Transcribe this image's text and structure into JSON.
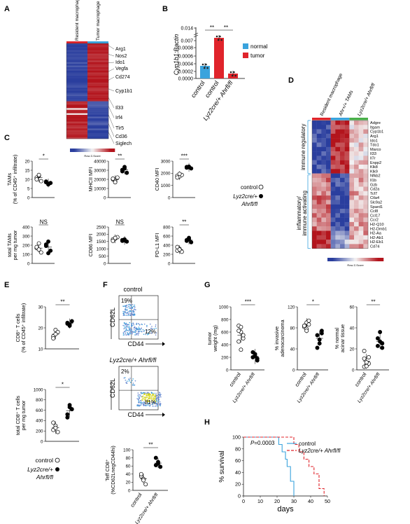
{
  "panels": {
    "A": {
      "label": "A",
      "columns": [
        "Resident macrophage",
        "Tumor macrophage"
      ],
      "genes": [
        "Arg1",
        "Nos2",
        "Ido1",
        "Vegfa",
        "Cd274",
        "Cyp1b1",
        "Il33",
        "Irf4",
        "Tlr5",
        "Cd36",
        "Siglech"
      ],
      "scale_label": "Row Z-Score",
      "colors": {
        "low": "#2c3fa0",
        "mid": "#ffffff",
        "high": "#b0131d"
      }
    },
    "B": {
      "label": "B",
      "ylabel": "Cyp1b1:Bactin",
      "yticks": [
        "0.014",
        "0.007",
        "0.0008",
        "0.0006",
        "0.0004",
        "0.0002",
        "0.0000"
      ],
      "xlabels": [
        "control",
        "control",
        "Lyz2cre/+ Ahrfl/fl"
      ],
      "legend": [
        {
          "name": "normal",
          "color": "#3aa3dd"
        },
        {
          "name": "tumor",
          "color": "#e0242b"
        }
      ],
      "sig": [
        "**",
        "**"
      ],
      "chart_data": {
        "type": "bar",
        "categories": [
          "control (normal)",
          "control (tumor)",
          "Lyz2cre/+ Ahrfl/fl (tumor)"
        ],
        "values": [
          0.00035,
          0.0095,
          0.00015
        ],
        "colors": [
          "#3aa3dd",
          "#e0242b",
          "#e0242b"
        ]
      }
    },
    "C": {
      "label": "C",
      "legend_control": "control",
      "legend_ko": "Lyz2cre/+",
      "legend_ko2": "Ahrfl/fl",
      "plots": [
        {
          "ylabel": "TAMs",
          "ylabel2": "(% of CD45⁺ infiltrate)",
          "yticks": [
            "20",
            "15",
            "10",
            "5",
            "0"
          ],
          "sig": "*"
        },
        {
          "ylabel": "MHCII MFI",
          "yticks": [
            "40000",
            "30000",
            "20000",
            "10000",
            "0"
          ],
          "sig": "**"
        },
        {
          "ylabel": "CD40 MFI",
          "yticks": [
            "3000",
            "2000",
            "1000",
            "0"
          ],
          "sig": "***"
        },
        {
          "ylabel": "total TAMs",
          "ylabel2": "per mg tumor",
          "yticks": [
            "400",
            "300",
            "200",
            "100",
            "0"
          ],
          "sig": "NS"
        },
        {
          "ylabel": "CD86 MFI",
          "yticks": [
            "2500",
            "2000",
            "1500",
            "1000",
            "500",
            "0"
          ],
          "sig": "NS"
        },
        {
          "ylabel": "PD-L1 MFI",
          "yticks": [
            "800",
            "600",
            "400",
            "200",
            "0"
          ],
          "sig": "**"
        }
      ]
    },
    "D": {
      "label": "D",
      "columns": [
        "Resident macrophage",
        "Ahr+/+ TAMs",
        "Lyz2cre/+ Ahrfl/fl"
      ],
      "group_top": "immune regulatory",
      "group_bottom": "inflammatory/ immune activating",
      "genes": [
        "Adgre",
        "Itgam",
        "Cyp1b1",
        "Arg1",
        "Ido1",
        "Tdo1",
        "Marco",
        "Il33",
        "Il7r",
        "Enpp2",
        "Klk8",
        "Klk9",
        "Nfkb2",
        "Il1b",
        "Gzb",
        "Cd2a",
        "Tcf7",
        "Ctla4",
        "Slc9a2",
        "Spard1",
        "Ccl8",
        "Ccl17",
        "Ccr2",
        "H2-Q10",
        "H2-Dmb1",
        "H2-Aa",
        "H2-Ab1",
        "H2-Eb1",
        "Cd74"
      ],
      "scale_label": "Row Z-Score"
    },
    "E": {
      "label": "E",
      "top_ylabel": "CD8⁺ T cells",
      "top_ylabel2": "(% of CD45⁺ infiltrate)",
      "top_yticks": [
        "30",
        "20",
        "10"
      ],
      "top_sig": "**",
      "bot_ylabel": "total CD8⁺ T cells",
      "bot_ylabel2": "per mg tumor",
      "bot_yticks": [
        "1000",
        "800",
        "600",
        "400",
        "200",
        "0"
      ],
      "bot_sig": "*",
      "legend_control": "control",
      "legend_ko": "Lyz2cre/+",
      "legend_ko2": "Ahrfl/fl"
    },
    "F": {
      "label": "F",
      "ctrl_title": "control",
      "ko_title": "Lyz2cre/+ Ahrfl/fl",
      "ctrl_q1": "19%",
      "ctrl_q2": "12%",
      "ko_q1": "2%",
      "ko_q2": "81%",
      "xaxis": "CD44",
      "yaxis": "CD62L",
      "bar_ylabel": "Teff CD8⁺",
      "bar_ylabel2": "(%CD62LnegCD44hi)",
      "bar_yticks": [
        "100",
        "80",
        "60",
        "40",
        "20",
        "0"
      ],
      "bar_sig": "**",
      "xlabels": [
        "control",
        "Lyz2cre/+ Ahrfl/fl"
      ]
    },
    "G": {
      "label": "G",
      "plots": [
        {
          "ylabel": "tumor",
          "ylabel2": "weight (mg)",
          "yticks": [
            "1000",
            "800",
            "600",
            "400",
            "200",
            "0"
          ],
          "sig": "***"
        },
        {
          "ylabel": "% invasive",
          "ylabel2": "adenocarcinoma",
          "yticks": [
            "120",
            "80",
            "40",
            "0"
          ],
          "sig": "*"
        },
        {
          "ylabel": "% normal",
          "ylabel2": "acinar tissue",
          "yticks": [
            "60",
            "40",
            "20",
            "0"
          ],
          "sig": "**"
        }
      ],
      "xlabels": [
        "control",
        "Lyz2cre/+ Ahrfl/fl"
      ]
    },
    "H": {
      "label": "H",
      "pvalue": "P=0.0003",
      "legend_control": "control",
      "legend_ko": "Lyz2cre/+ Ahrfl/fl",
      "ylabel": "% survival",
      "xlabel": "days",
      "yticks": [
        "100",
        "80",
        "60",
        "40",
        "20",
        "0"
      ],
      "xticks": [
        "0",
        "10",
        "20",
        "30",
        "40",
        "50"
      ],
      "chart_data": {
        "type": "line",
        "series": [
          {
            "name": "control",
            "color": "#3aa3dd",
            "x": [
              0,
              20,
              21,
              23,
              25,
              26,
              28,
              30,
              30
            ],
            "y": [
              100,
              100,
              87.5,
              75,
              62.5,
              50,
              25,
              12.5,
              0
            ]
          },
          {
            "name": "Lyz2cre/+ Ahrfl/fl",
            "color": "#e0242b",
            "x": [
              0,
              27,
              30,
              33,
              36,
              39,
              42,
              45,
              48
            ],
            "y": [
              100,
              100,
              87.5,
              75,
              62.5,
              50,
              37.5,
              12.5,
              0
            ]
          }
        ],
        "xlim": [
          0,
          50
        ],
        "ylim": [
          0,
          100
        ]
      }
    }
  }
}
